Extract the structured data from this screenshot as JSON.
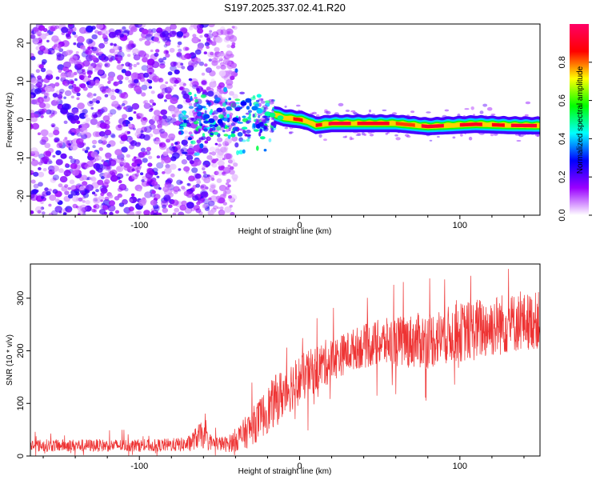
{
  "title": "S197.2025.337.02.41.R20",
  "chart_data": [
    {
      "type": "heatmap",
      "xlabel": "Height of straight line (km)",
      "ylabel": "Frequency (Hz)",
      "xlim": [
        -168,
        150
      ],
      "ylim": [
        -25,
        25
      ],
      "xticks": [
        -100,
        0,
        100
      ],
      "xtick_labels": [
        "-100",
        "0",
        "100"
      ],
      "yticks": [
        -20,
        -10,
        0,
        10,
        20
      ],
      "ytick_labels": [
        "-20",
        "-10",
        "0",
        "10",
        "20"
      ],
      "colorbar": {
        "label": "Normalized spectral amplitude",
        "range": [
          0,
          1
        ],
        "ticks": [
          0.0,
          0.2,
          0.4,
          0.6,
          0.8
        ],
        "tick_labels": [
          "0.0",
          "0.2",
          "0.4",
          "0.6",
          "0.8"
        ],
        "colormap": [
          "#ffffff",
          "#9a00ff",
          "#0000ff",
          "#00ffff",
          "#00ff00",
          "#ffff00",
          "#ff0000",
          "#ff0066"
        ]
      },
      "regions": [
        {
          "name": "noise",
          "x_range": [
            -168,
            -40
          ],
          "freq_range": [
            -25,
            25
          ],
          "amplitude": 0.15
        },
        {
          "name": "transition",
          "x_range": [
            -75,
            -15
          ],
          "freq_center": 0,
          "freq_spread": 8,
          "amplitude": 0.3
        },
        {
          "name": "signal-line",
          "x_range": [
            -15,
            150
          ],
          "freq_center": -1.2,
          "amplitude": 0.9
        }
      ],
      "line_track": [
        {
          "x": -30,
          "freq": 3.5
        },
        {
          "x": -20,
          "freq": 2
        },
        {
          "x": -10,
          "freq": 0.5
        },
        {
          "x": 0,
          "freq": 0
        },
        {
          "x": 5,
          "freq": -0.5
        },
        {
          "x": 10,
          "freq": -1.5
        },
        {
          "x": 20,
          "freq": -1
        },
        {
          "x": 40,
          "freq": -1
        },
        {
          "x": 60,
          "freq": -1
        },
        {
          "x": 80,
          "freq": -1.8
        },
        {
          "x": 95,
          "freq": -1.5
        },
        {
          "x": 110,
          "freq": -1.2
        },
        {
          "x": 130,
          "freq": -1.5
        },
        {
          "x": 150,
          "freq": -1.6
        }
      ]
    },
    {
      "type": "line",
      "xlabel": "Height of straight line (km)",
      "ylabel": "SNR (10 * v/v)",
      "xlim": [
        -168,
        150
      ],
      "ylim": [
        0,
        365
      ],
      "xticks": [
        -100,
        0,
        100
      ],
      "xtick_labels": [
        "-100",
        "0",
        "100"
      ],
      "yticks": [
        0,
        100,
        200,
        300
      ],
      "ytick_labels": [
        "0",
        "100",
        "200",
        "300"
      ],
      "color": "#ee3333",
      "series": [
        {
          "name": "SNR",
          "x": [
            -168,
            -140,
            -110,
            -90,
            -70,
            -62,
            -55,
            -45,
            -35,
            -25,
            -15,
            -5,
            5,
            15,
            25,
            35,
            50,
            65,
            80,
            95,
            110,
            125,
            140,
            150
          ],
          "mean": [
            20,
            20,
            20,
            20,
            22,
            40,
            25,
            22,
            40,
            70,
            105,
            135,
            155,
            175,
            190,
            205,
            215,
            218,
            220,
            232,
            240,
            250,
            255,
            258
          ],
          "spread": [
            12,
            12,
            12,
            12,
            14,
            25,
            14,
            15,
            30,
            40,
            50,
            50,
            45,
            45,
            40,
            40,
            45,
            50,
            55,
            55,
            60,
            60,
            55,
            55
          ]
        }
      ]
    }
  ]
}
